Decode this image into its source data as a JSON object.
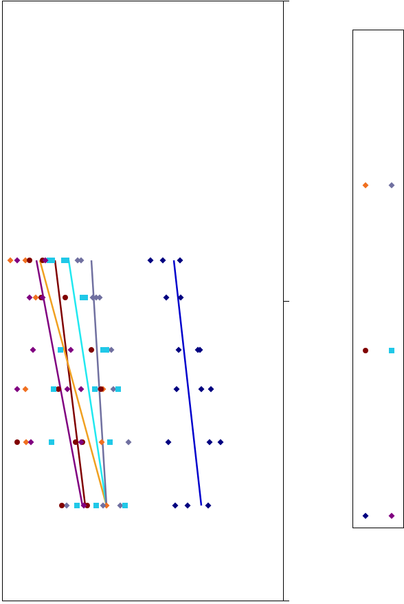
{
  "chart_data": {
    "type": "scatter",
    "xlim": [
      0,
      410
    ],
    "ylim": [
      0,
      872
    ],
    "legend": "right",
    "series": [
      {
        "color": "#f07020",
        "marker": "diamond",
        "x": [
          12,
          34,
          49,
          130,
          34,
          147,
          35,
          145,
          152
        ],
        "values": [
          495,
          495,
          441,
          365,
          308,
          308,
          231,
          231,
          139
        ]
      },
      {
        "color": "#7070a0",
        "marker": "diamond",
        "x": [
          110,
          115,
          132,
          137,
          142,
          154,
          159,
          142,
          162,
          184,
          94,
          147,
          172
        ],
        "values": [
          495,
          495,
          441,
          441,
          441,
          365,
          365,
          308,
          308,
          231,
          139,
          139,
          139
        ]
      },
      {
        "color": "#800000",
        "marker": "circle",
        "x": [
          40,
          59,
          57,
          92,
          85,
          130,
          82,
          144,
          22,
          107,
          117,
          87,
          124
        ],
        "values": [
          495,
          495,
          441,
          441,
          365,
          365,
          308,
          308,
          231,
          231,
          231,
          139,
          139
        ]
      },
      {
        "color": "#20c8e8",
        "marker": "square",
        "x": [
          69,
          73,
          90,
          94,
          117,
          121,
          85,
          147,
          152,
          75,
          135,
          169,
          72,
          157,
          109,
          137,
          179
        ],
        "values": [
          495,
          495,
          495,
          495,
          441,
          441,
          365,
          365,
          365,
          308,
          308,
          308,
          231,
          231,
          139,
          139,
          139
        ]
      },
      {
        "color": "#000080",
        "marker": "diamond",
        "x": [
          216,
          234,
          259,
          239,
          260,
          257,
          285,
          288,
          254,
          290,
          304,
          242,
          302,
          318,
          252,
          270,
          300
        ],
        "values": [
          495,
          495,
          495,
          441,
          441,
          365,
          365,
          365,
          308,
          308,
          308,
          231,
          231,
          231,
          139,
          139,
          139
        ]
      },
      {
        "color": "#800080",
        "marker": "diamond",
        "x": [
          22,
          63,
          40,
          59,
          45,
          100,
          22,
          95,
          115,
          42,
          115,
          119
        ],
        "values": [
          495,
          495,
          441,
          441,
          365,
          365,
          308,
          308,
          308,
          231,
          231,
          139
        ]
      }
    ],
    "trendlines": [
      {
        "color": "#800080",
        "x": [
          50,
          117
        ],
        "values": [
          495,
          139
        ]
      },
      {
        "color": "#800000",
        "x": [
          77,
          121
        ],
        "values": [
          495,
          139
        ]
      },
      {
        "color": "#f0a020",
        "x": [
          55,
          152
        ],
        "values": [
          495,
          139
        ]
      },
      {
        "color": "#20e8f0",
        "x": [
          97,
          152
        ],
        "values": [
          495,
          139
        ]
      },
      {
        "color": "#7070a0",
        "x": [
          130,
          152
        ],
        "values": [
          495,
          139
        ]
      },
      {
        "color": "#0000cc",
        "x": [
          250,
          290
        ],
        "values": [
          495,
          139
        ]
      }
    ]
  }
}
